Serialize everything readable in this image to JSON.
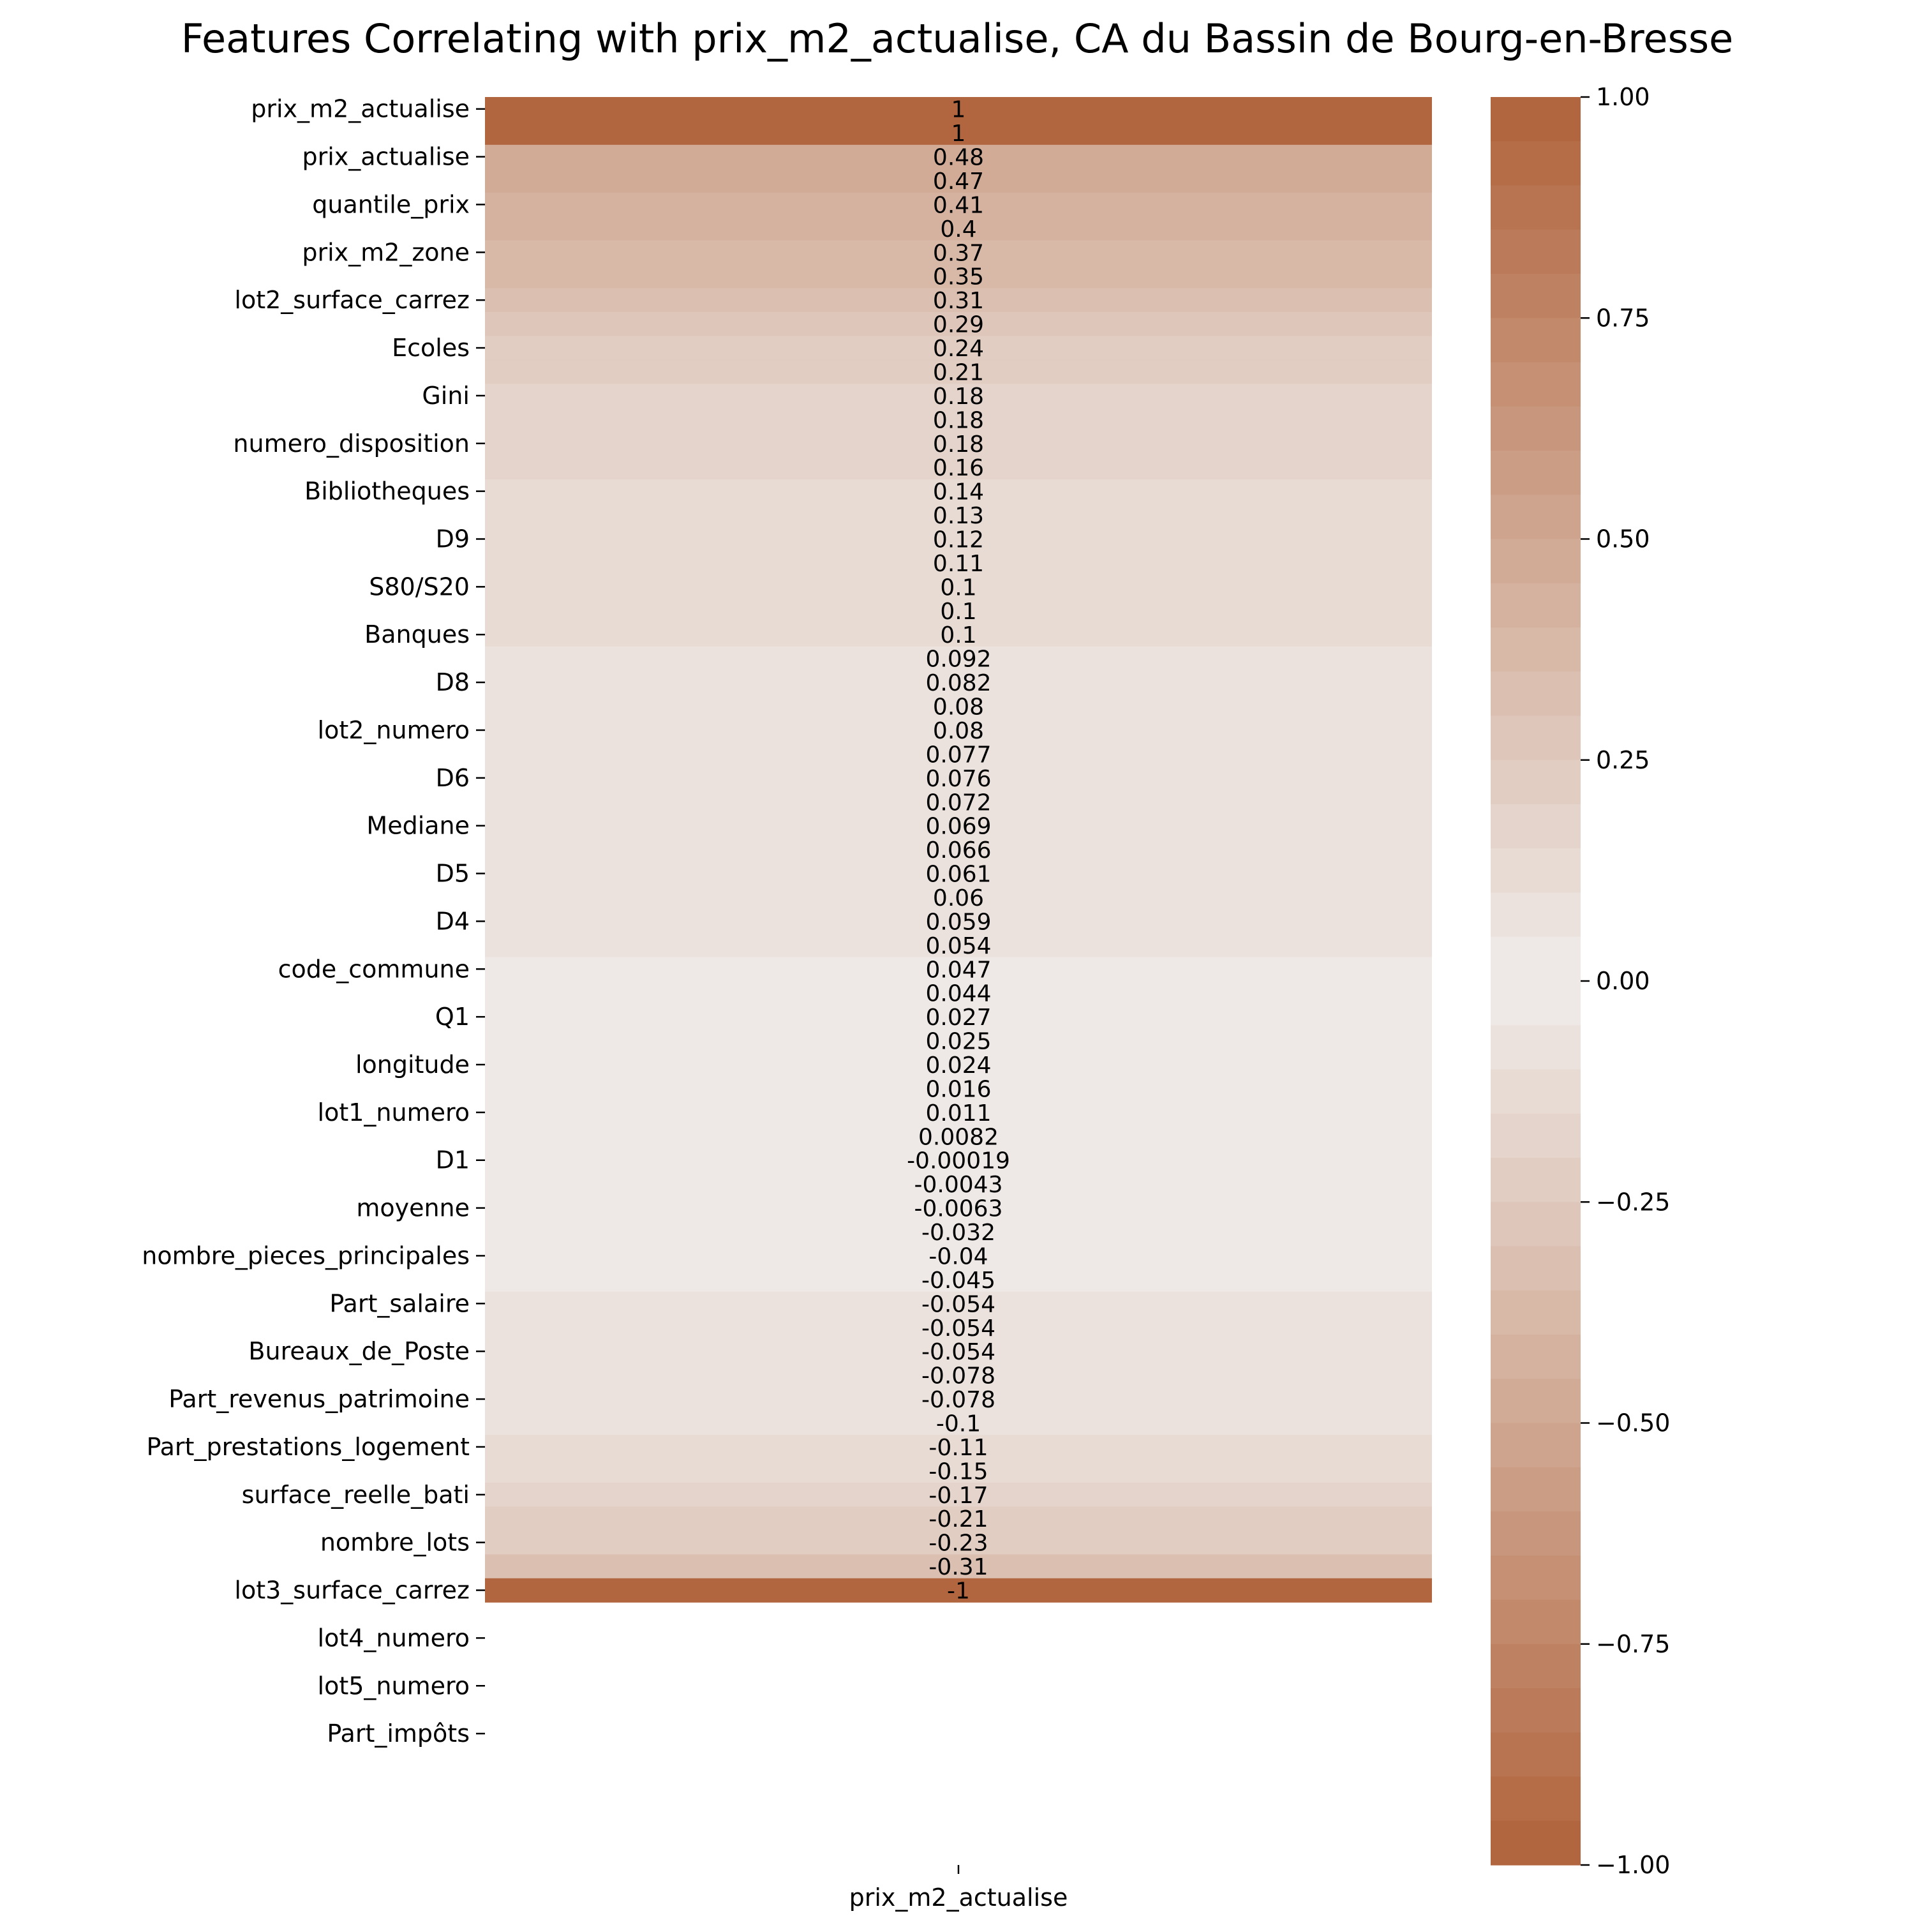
{
  "chart_data": {
    "type": "heatmap",
    "title": "Features Correlating with prix_m2_actualise, CA du Bassin de Bourg-en-Bresse",
    "x_categories": [
      "prix_m2_actualise"
    ],
    "y_tick_labels": [
      "prix_m2_actualise",
      "prix_actualise",
      "quantile_prix",
      "prix_m2_zone",
      "lot2_surface_carrez",
      "Ecoles",
      "Gini",
      "numero_disposition",
      "Bibliotheques",
      "D9",
      "S80/S20",
      "Banques",
      "D8",
      "lot2_numero",
      "D6",
      "Mediane",
      "D5",
      "D4",
      "code_commune",
      "Q1",
      "longitude",
      "lot1_numero",
      "D1",
      "moyenne",
      "nombre_pieces_principales",
      "Part_salaire",
      "Bureaux_de_Poste",
      "Part_revenus_patrimoine",
      "Part_prestations_logement",
      "surface_reelle_bati",
      "nombre_lots",
      "lot3_surface_carrez",
      "lot4_numero",
      "lot5_numero",
      "Part_impôts"
    ],
    "row_count": 74,
    "values": [
      1,
      1,
      0.48,
      0.47,
      0.41,
      0.4,
      0.37,
      0.35,
      0.31,
      0.29,
      0.24,
      0.21,
      0.18,
      0.18,
      0.18,
      0.16,
      0.14,
      0.13,
      0.12,
      0.11,
      0.1,
      0.1,
      0.1,
      0.092,
      0.082,
      0.08,
      0.08,
      0.077,
      0.076,
      0.072,
      0.069,
      0.066,
      0.061,
      0.06,
      0.059,
      0.054,
      0.047,
      0.044,
      0.027,
      0.025,
      0.024,
      0.016,
      0.011,
      0.0082,
      -0.00019,
      -0.0043,
      -0.0063,
      -0.032,
      -0.04,
      -0.045,
      -0.054,
      -0.054,
      -0.054,
      -0.078,
      -0.078,
      -0.1,
      -0.11,
      -0.15,
      -0.17,
      -0.21,
      -0.23,
      -0.31,
      -1,
      null,
      null,
      null,
      null,
      null,
      null,
      null,
      null,
      null,
      null,
      null
    ],
    "value_labels": [
      "1",
      "1",
      "0.48",
      "0.47",
      "0.41",
      "0.4",
      "0.37",
      "0.35",
      "0.31",
      "0.29",
      "0.24",
      "0.21",
      "0.18",
      "0.18",
      "0.18",
      "0.16",
      "0.14",
      "0.13",
      "0.12",
      "0.11",
      "0.1",
      "0.1",
      "0.1",
      "0.092",
      "0.082",
      "0.08",
      "0.08",
      "0.077",
      "0.076",
      "0.072",
      "0.069",
      "0.066",
      "0.061",
      "0.06",
      "0.059",
      "0.054",
      "0.047",
      "0.044",
      "0.027",
      "0.025",
      "0.024",
      "0.016",
      "0.011",
      "0.0082",
      "-0.00019",
      "-0.0043",
      "-0.0063",
      "-0.032",
      "-0.04",
      "-0.045",
      "-0.054",
      "-0.054",
      "-0.054",
      "-0.078",
      "-0.078",
      "-0.1",
      "-0.11",
      "-0.15",
      "-0.17",
      "-0.21",
      "-0.23",
      "-0.31",
      "-1"
    ],
    "colorbar": {
      "range": [
        -1,
        1
      ],
      "ticks": [
        1,
        0.75,
        0.5,
        0.25,
        0,
        -0.25,
        -0.5,
        -0.75,
        -1
      ],
      "tick_labels": [
        "1.00",
        "0.75",
        "0.50",
        "0.25",
        "0.00",
        "−0.25",
        "−0.50",
        "−0.75",
        "−1.00"
      ],
      "extreme_color": "#b0633b",
      "center_color": "#f0ecea",
      "bins": 40
    },
    "grid": false,
    "legend": "colorbar-right"
  }
}
